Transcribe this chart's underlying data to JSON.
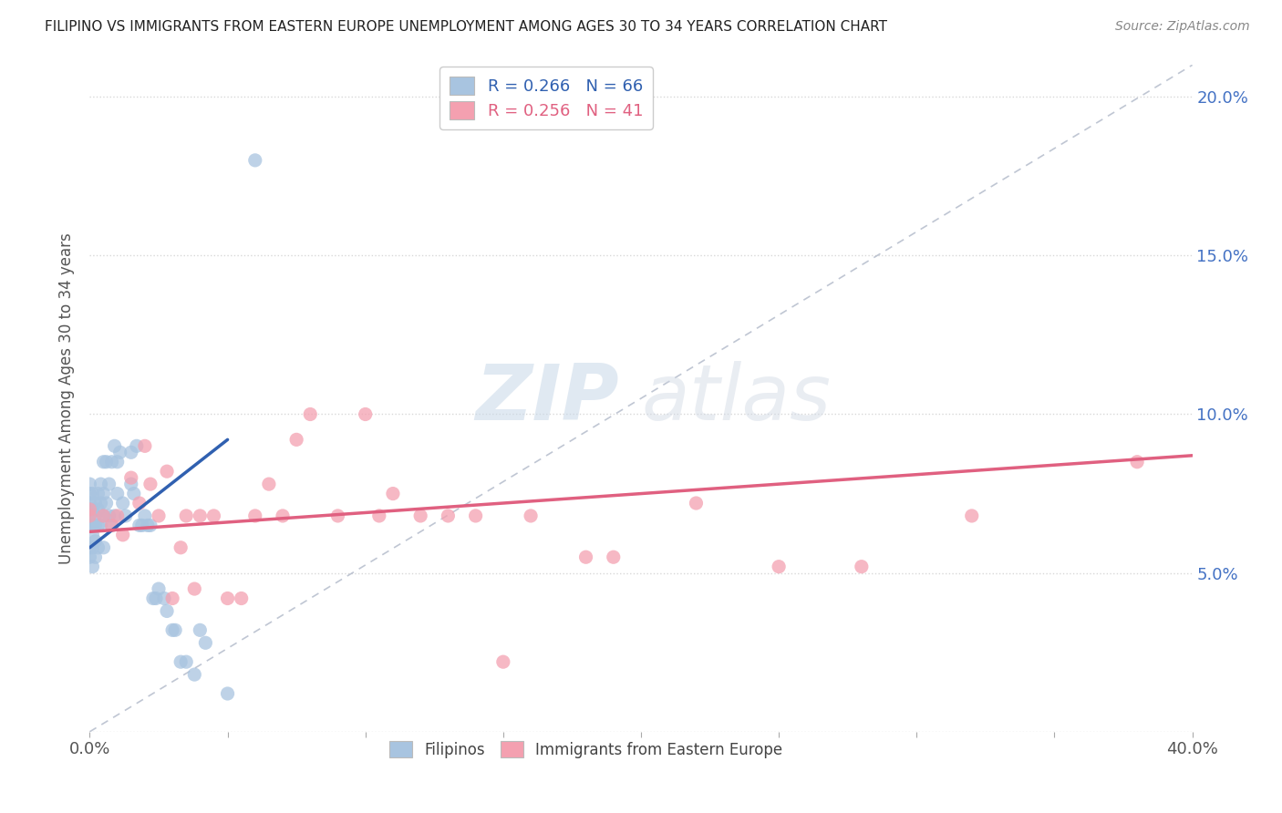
{
  "title": "FILIPINO VS IMMIGRANTS FROM EASTERN EUROPE UNEMPLOYMENT AMONG AGES 30 TO 34 YEARS CORRELATION CHART",
  "source": "Source: ZipAtlas.com",
  "ylabel": "Unemployment Among Ages 30 to 34 years",
  "xlim": [
    0.0,
    0.4
  ],
  "ylim": [
    0.0,
    0.21
  ],
  "blue_R": 0.266,
  "blue_N": 66,
  "pink_R": 0.256,
  "pink_N": 41,
  "blue_color": "#a8c4e0",
  "pink_color": "#f4a0b0",
  "blue_line_color": "#3060b0",
  "pink_line_color": "#e06080",
  "diag_line_color": "#b0b8c8",
  "legend_label_blue": "Filipinos",
  "legend_label_pink": "Immigrants from Eastern Europe",
  "watermark_zip": "ZIP",
  "watermark_atlas": "atlas",
  "background_color": "#ffffff",
  "scatter_blue_x": [
    0.0,
    0.0,
    0.0,
    0.0,
    0.0,
    0.0,
    0.0,
    0.0,
    0.001,
    0.001,
    0.001,
    0.001,
    0.001,
    0.001,
    0.002,
    0.002,
    0.002,
    0.002,
    0.002,
    0.003,
    0.003,
    0.003,
    0.003,
    0.004,
    0.004,
    0.004,
    0.005,
    0.005,
    0.005,
    0.005,
    0.006,
    0.006,
    0.007,
    0.007,
    0.008,
    0.008,
    0.009,
    0.009,
    0.01,
    0.01,
    0.011,
    0.012,
    0.013,
    0.015,
    0.015,
    0.016,
    0.017,
    0.018,
    0.019,
    0.02,
    0.021,
    0.022,
    0.023,
    0.024,
    0.025,
    0.027,
    0.028,
    0.03,
    0.031,
    0.033,
    0.035,
    0.038,
    0.04,
    0.042,
    0.05,
    0.06
  ],
  "scatter_blue_y": [
    0.065,
    0.068,
    0.07,
    0.072,
    0.075,
    0.078,
    0.058,
    0.055,
    0.062,
    0.065,
    0.07,
    0.075,
    0.058,
    0.052,
    0.065,
    0.068,
    0.072,
    0.06,
    0.055,
    0.07,
    0.075,
    0.065,
    0.058,
    0.065,
    0.072,
    0.078,
    0.068,
    0.075,
    0.085,
    0.058,
    0.072,
    0.085,
    0.068,
    0.078,
    0.065,
    0.085,
    0.068,
    0.09,
    0.075,
    0.085,
    0.088,
    0.072,
    0.068,
    0.078,
    0.088,
    0.075,
    0.09,
    0.065,
    0.065,
    0.068,
    0.065,
    0.065,
    0.042,
    0.042,
    0.045,
    0.042,
    0.038,
    0.032,
    0.032,
    0.022,
    0.022,
    0.018,
    0.032,
    0.028,
    0.012,
    0.18
  ],
  "scatter_pink_x": [
    0.0,
    0.0,
    0.005,
    0.008,
    0.01,
    0.012,
    0.015,
    0.018,
    0.02,
    0.022,
    0.025,
    0.028,
    0.03,
    0.033,
    0.035,
    0.038,
    0.04,
    0.045,
    0.05,
    0.055,
    0.06,
    0.065,
    0.07,
    0.075,
    0.08,
    0.09,
    0.1,
    0.105,
    0.11,
    0.12,
    0.13,
    0.14,
    0.15,
    0.16,
    0.18,
    0.19,
    0.22,
    0.25,
    0.28,
    0.32,
    0.38
  ],
  "scatter_pink_y": [
    0.068,
    0.07,
    0.068,
    0.065,
    0.068,
    0.062,
    0.08,
    0.072,
    0.09,
    0.078,
    0.068,
    0.082,
    0.042,
    0.058,
    0.068,
    0.045,
    0.068,
    0.068,
    0.042,
    0.042,
    0.068,
    0.078,
    0.068,
    0.092,
    0.1,
    0.068,
    0.1,
    0.068,
    0.075,
    0.068,
    0.068,
    0.068,
    0.022,
    0.068,
    0.055,
    0.055,
    0.072,
    0.052,
    0.052,
    0.068,
    0.085
  ],
  "blue_trend_x": [
    0.0,
    0.05
  ],
  "blue_trend_y": [
    0.058,
    0.092
  ],
  "pink_trend_x": [
    0.0,
    0.4
  ],
  "pink_trend_y": [
    0.063,
    0.087
  ]
}
